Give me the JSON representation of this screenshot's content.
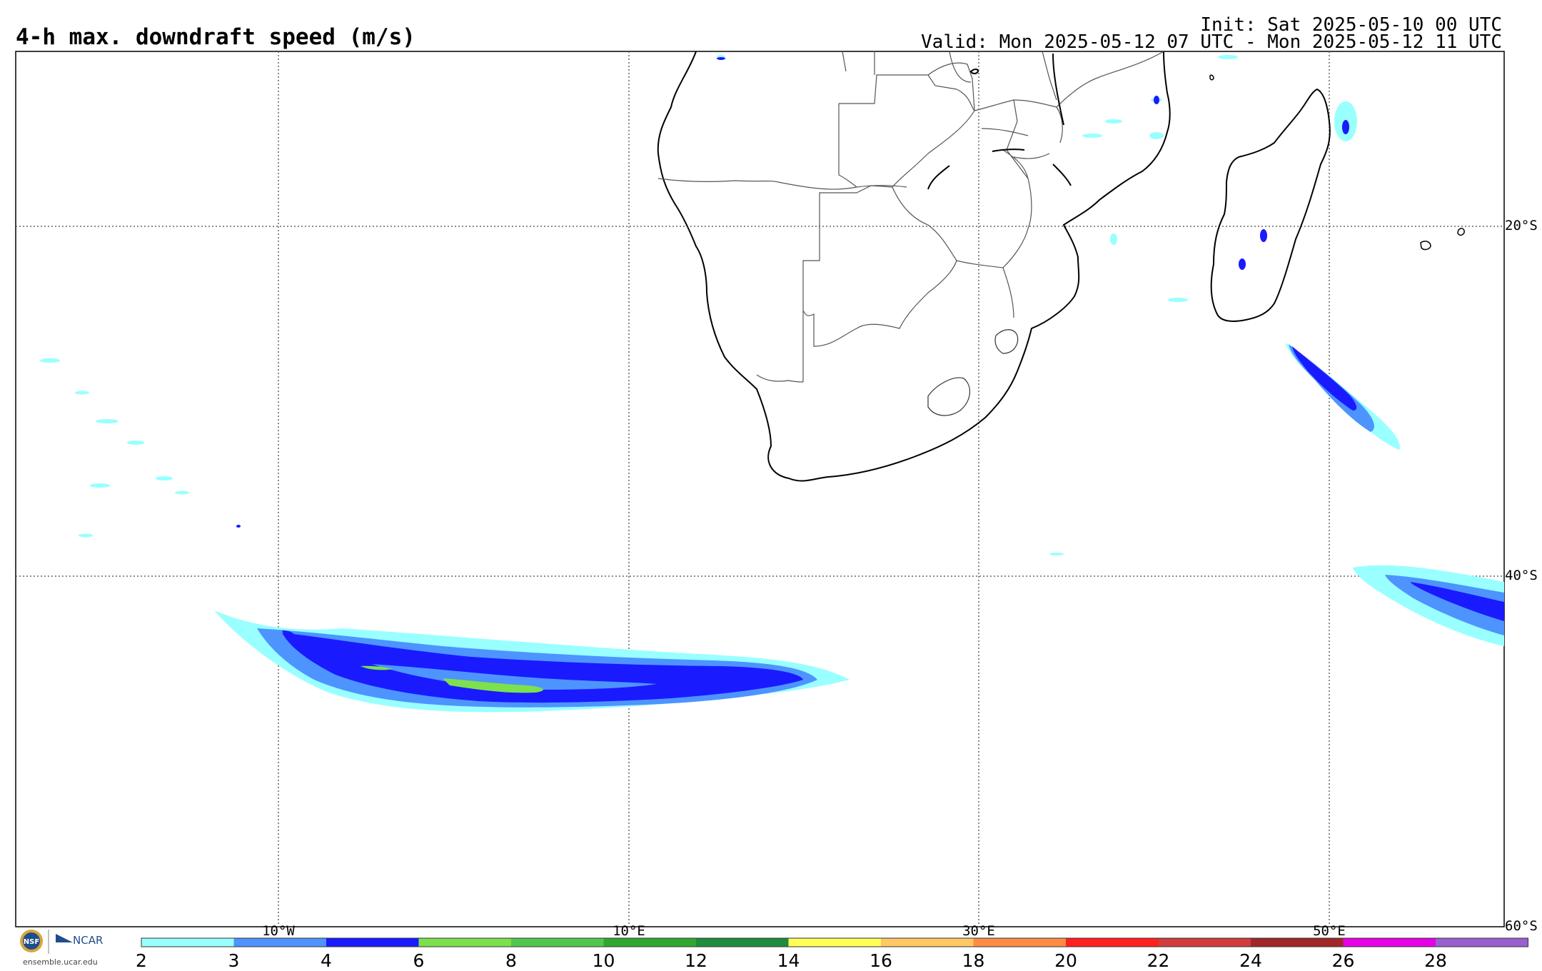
{
  "header": {
    "title": "4-h max. downdraft speed (m/s)",
    "init": "Init: Sat 2025-05-10 00 UTC",
    "valid": "Valid: Mon 2025-05-12 07 UTC - Mon 2025-05-12 11 UTC"
  },
  "map": {
    "projection": "cylindrical-equidistant",
    "lon_range": [
      -25,
      60
    ],
    "lat_range": [
      -60,
      -10
    ],
    "lat_labels": [
      "20°S",
      "40°S",
      "60°S"
    ],
    "lon_labels": [
      "10°W",
      "10°E",
      "30°E",
      "50°E"
    ],
    "gridlines": "dotted",
    "colors": {
      "coast": "#000000",
      "border": "#555555",
      "grid": "#666666"
    }
  },
  "colorbar": {
    "labels": [
      "2",
      "3",
      "4",
      "6",
      "8",
      "10",
      "12",
      "14",
      "16",
      "18",
      "20",
      "22",
      "24",
      "26",
      "28"
    ],
    "colors": [
      "#99ffff",
      "#4d94ff",
      "#1a1aff",
      "#7de04d",
      "#50c850",
      "#30a830",
      "#1e8c3c",
      "#ffff55",
      "#ffc864",
      "#ff8c46",
      "#ff2020",
      "#d23c3c",
      "#a02828",
      "#e600e6",
      "#9a60d0"
    ]
  },
  "branding": {
    "nsf_text": "NSF",
    "ncar_text": "NCAR",
    "url": "ensemble.ucar.edu"
  }
}
